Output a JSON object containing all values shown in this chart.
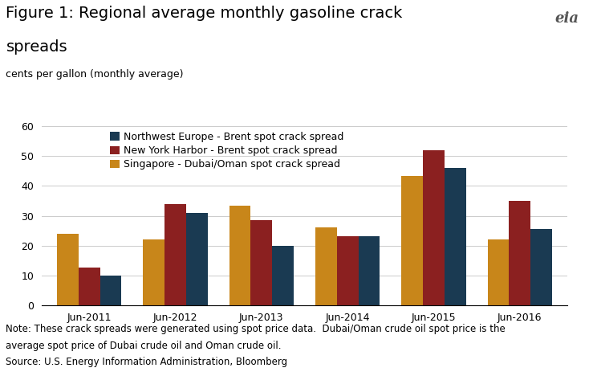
{
  "title": "Figure 1: Regional average monthly gasoline crack\nspreads",
  "ylabel": "cents per gallon (monthly average)",
  "categories": [
    "Jun-2011",
    "Jun-2012",
    "Jun-2013",
    "Jun-2014",
    "Jun-2015",
    "Jun-2016"
  ],
  "series": [
    {
      "label": "Singapore - Dubai/Oman spot crack spread",
      "color": "#c8861a",
      "values": [
        24,
        22,
        33.5,
        26,
        43.5,
        22
      ]
    },
    {
      "label": "New York Harbor - Brent spot crack spread",
      "color": "#8b2020",
      "values": [
        12.5,
        34,
        28.5,
        23,
        52,
        35
      ]
    },
    {
      "label": "Northwest Europe - Brent spot crack spread",
      "color": "#1a3a52",
      "values": [
        10,
        31,
        20,
        23,
        46,
        25.5
      ]
    }
  ],
  "legend_order": [
    2,
    1,
    0
  ],
  "ylim": [
    0,
    60
  ],
  "yticks": [
    0,
    10,
    20,
    30,
    40,
    50,
    60
  ],
  "note_line1": "Note: These crack spreads were generated using spot price data.  Dubai/Oman crude oil spot price is the",
  "note_line2": "average spot price of Dubai crude oil and Oman crude oil.",
  "note_line3": "Source: U.S. Energy Information Administration, Bloomberg",
  "background_color": "#ffffff",
  "grid_color": "#cccccc",
  "bar_width": 0.25,
  "title_fontsize": 14,
  "subtitle_fontsize": 9,
  "tick_fontsize": 9,
  "legend_fontsize": 9,
  "note_fontsize": 8.5
}
